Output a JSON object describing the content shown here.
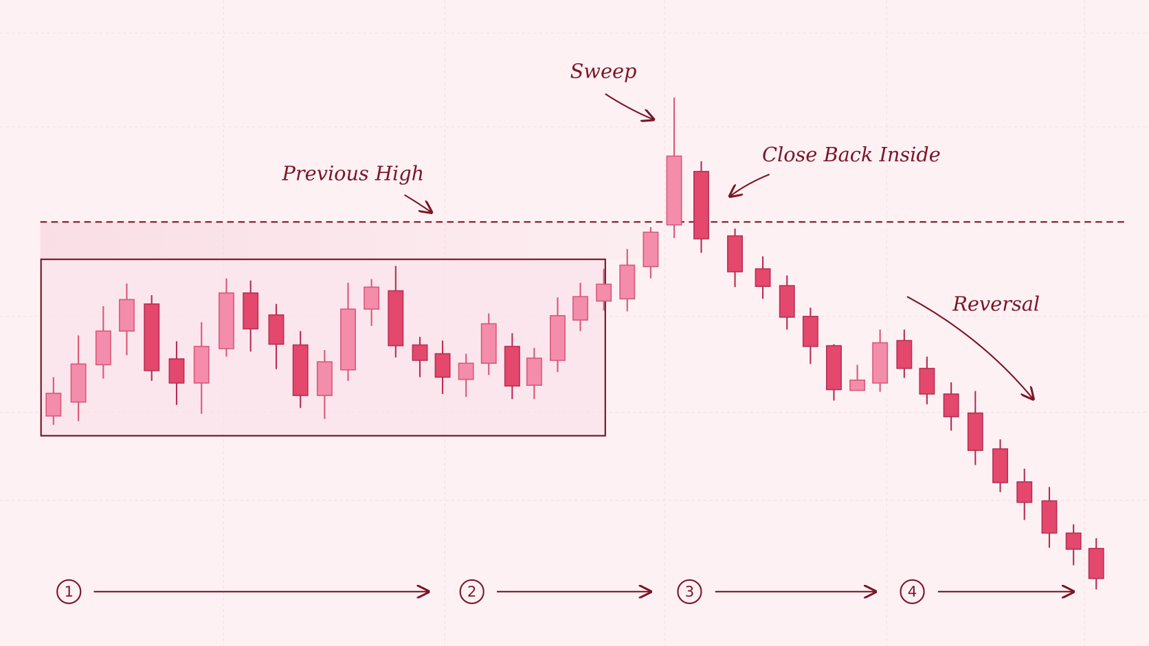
{
  "chart_data": {
    "type": "candlestick",
    "ylim": [
      0,
      882
    ],
    "open": [
      314,
      333,
      384,
      430,
      467,
      392,
      359,
      406,
      482,
      452,
      411,
      342,
      377,
      460,
      485,
      411,
      399,
      364,
      386,
      409,
      356,
      390,
      445,
      471,
      474,
      518,
      575,
      648,
      560,
      515,
      492,
      450,
      410,
      349,
      359,
      417,
      379,
      344,
      318,
      269,
      224,
      198,
      154,
      133
    ],
    "high": [
      367,
      424,
      464,
      495,
      479,
      416,
      442,
      502,
      499,
      467,
      430,
      404,
      496,
      501,
      519,
      422,
      417,
      399,
      454,
      427,
      407,
      476,
      496,
      515,
      542,
      572,
      749,
      662,
      570,
      532,
      506,
      462,
      412,
      384,
      432,
      432,
      395,
      360,
      348,
      282,
      242,
      217,
      166,
      147
    ],
    "low": [
      302,
      307,
      365,
      397,
      362,
      329,
      317,
      395,
      402,
      378,
      325,
      310,
      362,
      437,
      394,
      367,
      344,
      340,
      370,
      337,
      337,
      374,
      430,
      458,
      457,
      502,
      557,
      537,
      490,
      474,
      432,
      385,
      335,
      349,
      347,
      366,
      330,
      294,
      247,
      210,
      172,
      134,
      110,
      77
    ],
    "close": [
      345,
      385,
      430,
      473,
      376,
      359,
      409,
      482,
      433,
      412,
      342,
      388,
      460,
      490,
      410,
      390,
      367,
      386,
      440,
      355,
      393,
      451,
      477,
      494,
      520,
      565,
      669,
      556,
      511,
      491,
      449,
      409,
      350,
      363,
      414,
      379,
      344,
      313,
      267,
      223,
      196,
      154,
      132,
      92
    ],
    "up_color": "#f48cab",
    "down_color": "#e4486d",
    "previous_high": 579,
    "range": {
      "high": 528,
      "low": 287
    },
    "annotations": {
      "sweep": "Sweep",
      "previous_high": "Previous High",
      "close_back_inside": "Close Back Inside",
      "reversal": "Reversal"
    },
    "steps": [
      "1",
      "2",
      "3",
      "4"
    ]
  }
}
